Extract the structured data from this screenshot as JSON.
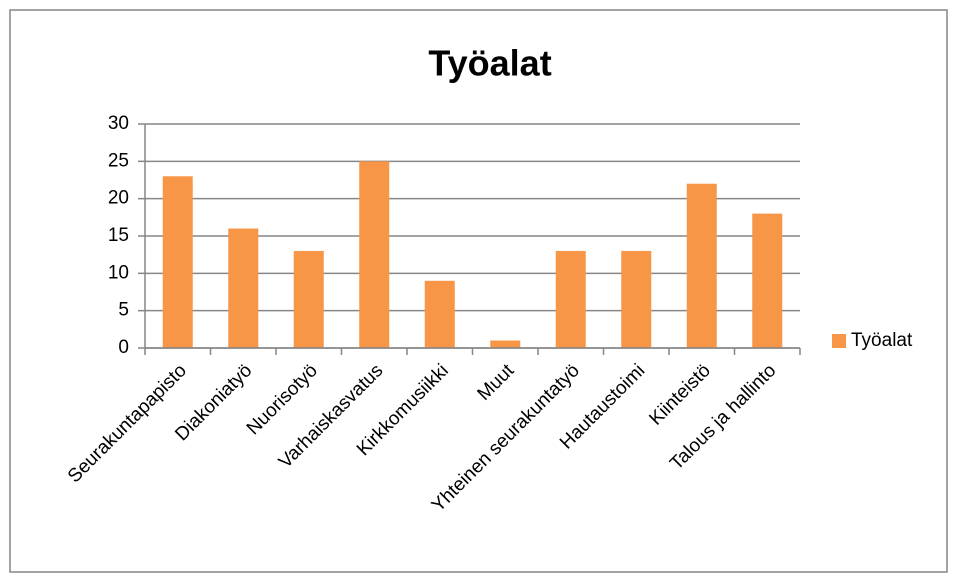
{
  "chart_data": {
    "type": "bar",
    "title": "Työalat",
    "categories": [
      "Seurakuntapapisto",
      "Diakoniatyö",
      "Nuorisotyö",
      "Varhaiskasvatus",
      "Kirkkomusiikki",
      "Muut",
      "Yhteinen seurakuntatyö",
      "Hautaustoimi",
      "Kiinteistö",
      "Talous ja hallinto"
    ],
    "series": [
      {
        "name": "Työalat",
        "color": "#f79646",
        "values": [
          23,
          16,
          13,
          25,
          9,
          1,
          13,
          13,
          22,
          18
        ]
      }
    ],
    "ylim": [
      0,
      30
    ],
    "yticks": [
      0,
      5,
      10,
      15,
      20,
      25,
      30
    ],
    "grid": true,
    "legend": "right"
  }
}
